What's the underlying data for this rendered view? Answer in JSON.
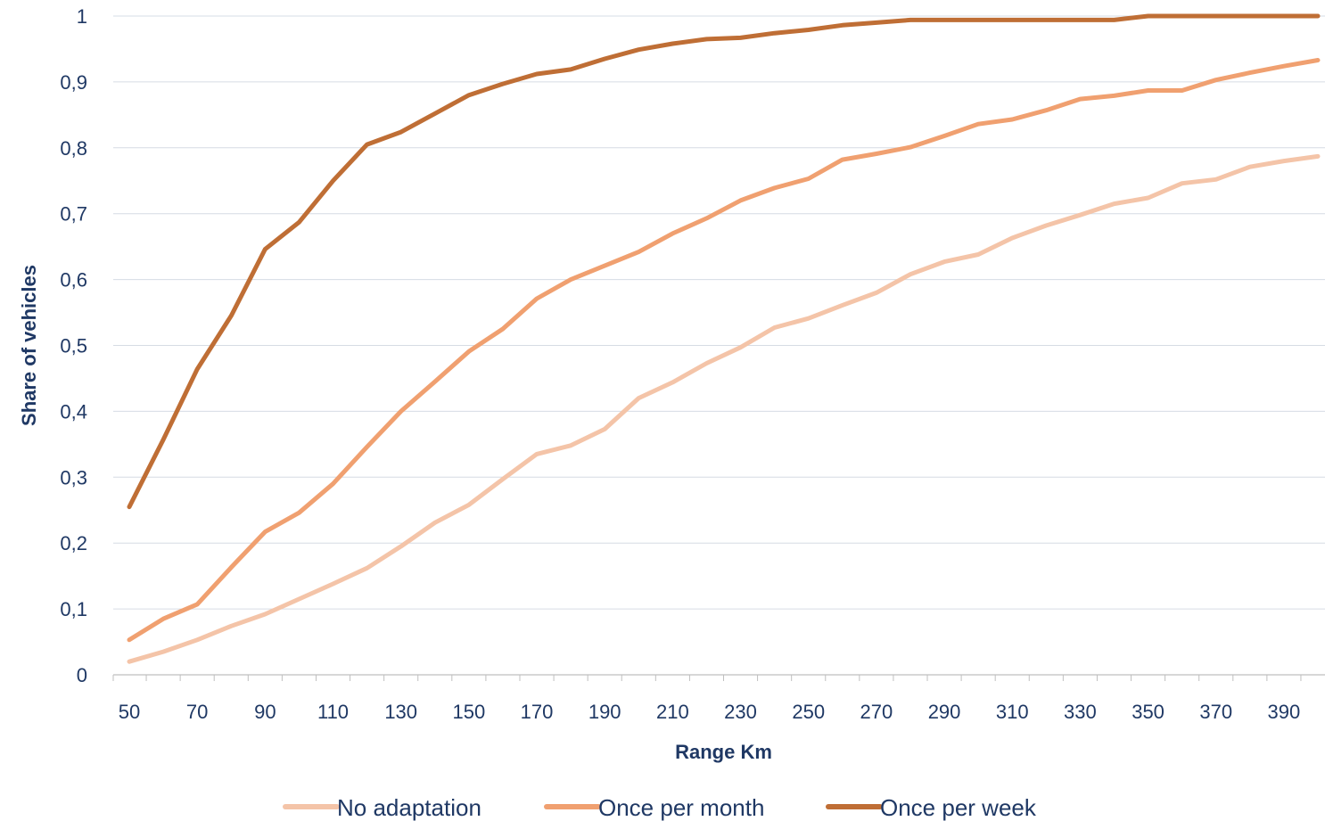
{
  "chart_data": {
    "type": "line",
    "title": "",
    "xlabel": "Range Km",
    "ylabel": "Share of vehicles",
    "xlim": [
      50,
      400
    ],
    "ylim": [
      0,
      1
    ],
    "x": [
      50,
      60,
      70,
      80,
      90,
      100,
      110,
      120,
      130,
      140,
      150,
      160,
      170,
      180,
      190,
      200,
      210,
      220,
      230,
      240,
      250,
      260,
      270,
      280,
      290,
      300,
      310,
      320,
      330,
      340,
      350,
      360,
      370,
      380,
      390,
      400
    ],
    "x_ticks": [
      "50",
      "70",
      "90",
      "110",
      "130",
      "150",
      "170",
      "190",
      "210",
      "230",
      "250",
      "270",
      "290",
      "310",
      "330",
      "350",
      "370",
      "390"
    ],
    "y_ticks": [
      "0",
      "0,1",
      "0,2",
      "0,3",
      "0,4",
      "0,5",
      "0,6",
      "0,7",
      "0,8",
      "0,9",
      "1"
    ],
    "grid": true,
    "legend_position": "bottom",
    "series": [
      {
        "name": "No adaptation",
        "color": "#f4c4a8",
        "values": [
          0.02,
          0.035,
          0.053,
          0.074,
          0.092,
          0.115,
          0.138,
          0.162,
          0.195,
          0.231,
          0.258,
          0.297,
          0.335,
          0.348,
          0.373,
          0.42,
          0.444,
          0.473,
          0.497,
          0.527,
          0.541,
          0.561,
          0.58,
          0.608,
          0.627,
          0.638,
          0.663,
          0.682,
          0.698,
          0.715,
          0.724,
          0.746,
          0.752,
          0.771,
          0.78,
          0.787
        ]
      },
      {
        "name": "Once per month",
        "color": "#f0a070",
        "values": [
          0.053,
          0.085,
          0.107,
          0.163,
          0.217,
          0.246,
          0.29,
          0.346,
          0.4,
          0.445,
          0.491,
          0.525,
          0.571,
          0.6,
          0.621,
          0.642,
          0.67,
          0.693,
          0.72,
          0.739,
          0.753,
          0.782,
          0.791,
          0.801,
          0.818,
          0.836,
          0.843,
          0.857,
          0.874,
          0.879,
          0.887,
          0.887,
          0.903,
          0.914,
          0.924,
          0.933
        ]
      },
      {
        "name": "Once per week",
        "color": "#bf6e35",
        "values": [
          0.255,
          0.357,
          0.464,
          0.545,
          0.646,
          0.687,
          0.75,
          0.805,
          0.824,
          0.852,
          0.88,
          0.897,
          0.912,
          0.919,
          0.935,
          0.949,
          0.958,
          0.965,
          0.967,
          0.974,
          0.979,
          0.986,
          0.99,
          0.994,
          0.994,
          0.994,
          0.994,
          0.994,
          0.994,
          0.994,
          1.0,
          1.0,
          1.0,
          1.0,
          1.0,
          1.0
        ]
      }
    ]
  }
}
